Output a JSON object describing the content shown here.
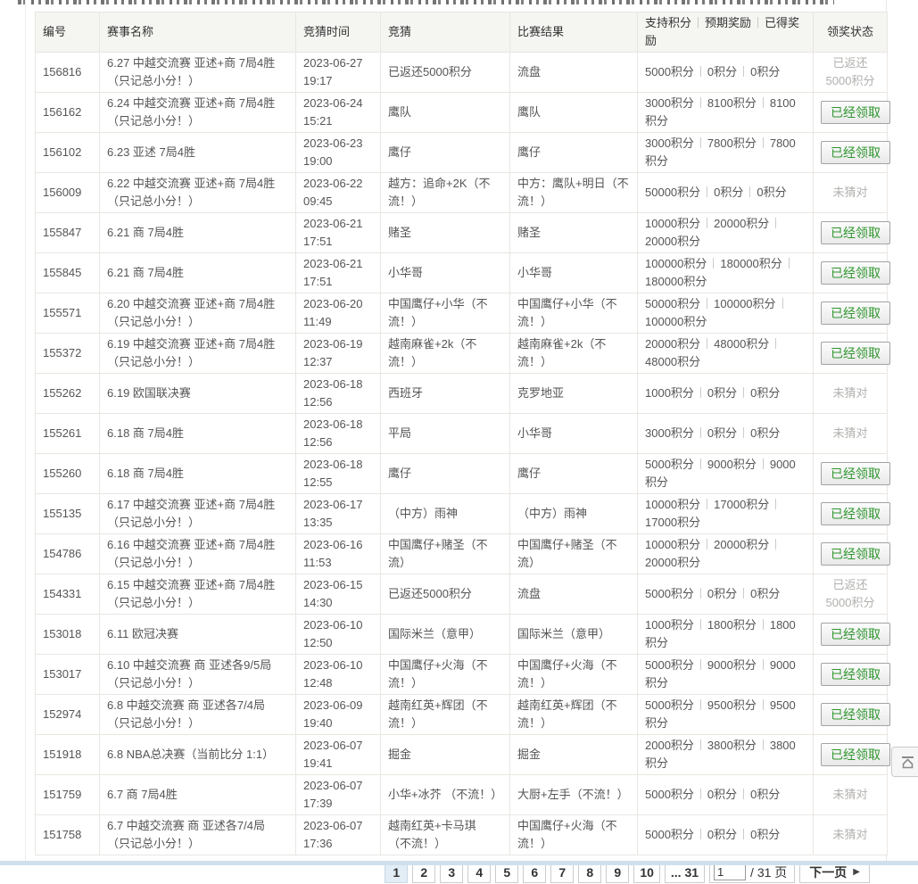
{
  "colors": {
    "accent_green": "#2f962f",
    "status_gray": "#b2b0ad",
    "bottom_bar": "#cfe0ec"
  },
  "table": {
    "headers": {
      "id": "编号",
      "event": "赛事名称",
      "time": "竞猜时间",
      "bet": "竞猜",
      "result": "比赛结果",
      "points_support": "支持积分",
      "points_expected": "预期奖励",
      "points_earned": "已得奖励",
      "status": "领奖状态"
    },
    "rows": [
      {
        "id": "156816",
        "event": "6.27 中越交流赛 亚述+商 7局4胜（只记总小分！）",
        "time": "2023-06-27 19:17",
        "bet": "已返还5000积分",
        "result": "流盘",
        "points": {
          "support": "5000积分",
          "expected": "0积分",
          "earned": "0积分"
        },
        "status": {
          "type": "text",
          "label": "已返还5000积分"
        }
      },
      {
        "id": "156162",
        "event": "6.24 中越交流赛 亚述+商 7局4胜（只记总小分！）",
        "time": "2023-06-24 15:21",
        "bet": "鹰队",
        "result": "鹰队",
        "points": {
          "support": "3000积分",
          "expected": "8100积分",
          "earned": "8100积分"
        },
        "status": {
          "type": "button",
          "label": "已经领取"
        }
      },
      {
        "id": "156102",
        "event": "6.23 亚述 7局4胜",
        "time": "2023-06-23 19:00",
        "bet": "鹰仔",
        "result": "鹰仔",
        "points": {
          "support": "3000积分",
          "expected": "7800积分",
          "earned": "7800积分"
        },
        "status": {
          "type": "button",
          "label": "已经领取"
        }
      },
      {
        "id": "156009",
        "event": "6.22 中越交流赛 亚述+商 7局4胜（只记总小分！）",
        "time": "2023-06-22 09:45",
        "bet": "越方：追命+2K（不流！）",
        "result": "中方：鹰队+明日（不流！）",
        "points": {
          "support": "50000积分",
          "expected": "0积分",
          "earned": "0积分"
        },
        "status": {
          "type": "text",
          "label": "未猜对"
        }
      },
      {
        "id": "155847",
        "event": "6.21 商 7局4胜",
        "time": "2023-06-21 17:51",
        "bet": "赌圣",
        "result": "赌圣",
        "points": {
          "support": "10000积分",
          "expected": "20000积分",
          "earned": "20000积分"
        },
        "status": {
          "type": "button",
          "label": "已经领取"
        }
      },
      {
        "id": "155845",
        "event": "6.21 商 7局4胜",
        "time": "2023-06-21 17:51",
        "bet": "小华哥",
        "result": "小华哥",
        "points": {
          "support": "100000积分",
          "expected": "180000积分",
          "earned": "180000积分"
        },
        "status": {
          "type": "button",
          "label": "已经领取"
        }
      },
      {
        "id": "155571",
        "event": "6.20 中越交流赛 亚述+商 7局4胜（只记总小分！）",
        "time": "2023-06-20 11:49",
        "bet": "中国鹰仔+小华（不流！）",
        "result": "中国鹰仔+小华（不流！）",
        "points": {
          "support": "50000积分",
          "expected": "100000积分",
          "earned": "100000积分"
        },
        "status": {
          "type": "button",
          "label": "已经领取"
        }
      },
      {
        "id": "155372",
        "event": "6.19 中越交流赛 亚述+商 7局4胜（只记总小分！）",
        "time": "2023-06-19 12:37",
        "bet": "越南麻雀+2k（不流！）",
        "result": "越南麻雀+2k（不流！）",
        "points": {
          "support": "20000积分",
          "expected": "48000积分",
          "earned": "48000积分"
        },
        "status": {
          "type": "button",
          "label": "已经领取"
        }
      },
      {
        "id": "155262",
        "event": "6.19 欧国联决赛",
        "time": "2023-06-18 12:56",
        "bet": "西班牙",
        "result": "克罗地亚",
        "points": {
          "support": "1000积分",
          "expected": "0积分",
          "earned": "0积分"
        },
        "status": {
          "type": "text",
          "label": "未猜对"
        }
      },
      {
        "id": "155261",
        "event": "6.18 商 7局4胜",
        "time": "2023-06-18 12:56",
        "bet": "平局",
        "result": "小华哥",
        "points": {
          "support": "3000积分",
          "expected": "0积分",
          "earned": "0积分"
        },
        "status": {
          "type": "text",
          "label": "未猜对"
        }
      },
      {
        "id": "155260",
        "event": "6.18 商 7局4胜",
        "time": "2023-06-18 12:55",
        "bet": "鹰仔",
        "result": "鹰仔",
        "points": {
          "support": "5000积分",
          "expected": "9000积分",
          "earned": "9000积分"
        },
        "status": {
          "type": "button",
          "label": "已经领取"
        }
      },
      {
        "id": "155135",
        "event": "6.17 中越交流赛 亚述+商 7局4胜（只记总小分！）",
        "time": "2023-06-17 13:35",
        "bet": "（中方）雨神",
        "result": "（中方）雨神",
        "points": {
          "support": "10000积分",
          "expected": "17000积分",
          "earned": "17000积分"
        },
        "status": {
          "type": "button",
          "label": "已经领取"
        }
      },
      {
        "id": "154786",
        "event": "6.16 中越交流赛 亚述+商 7局4胜（只记总小分！）",
        "time": "2023-06-16 11:53",
        "bet": "中国鹰仔+赌圣（不流）",
        "result": "中国鹰仔+赌圣（不流）",
        "points": {
          "support": "10000积分",
          "expected": "20000积分",
          "earned": "20000积分"
        },
        "status": {
          "type": "button",
          "label": "已经领取"
        }
      },
      {
        "id": "154331",
        "event": "6.15 中越交流赛 亚述+商 7局4胜（只记总小分！）",
        "time": "2023-06-15 14:30",
        "bet": "已返还5000积分",
        "result": "流盘",
        "points": {
          "support": "5000积分",
          "expected": "0积分",
          "earned": "0积分"
        },
        "status": {
          "type": "text",
          "label": "已返还5000积分"
        }
      },
      {
        "id": "153018",
        "event": "6.11 欧冠决赛",
        "time": "2023-06-10 12:50",
        "bet": "国际米兰（意甲）",
        "result": "国际米兰（意甲）",
        "points": {
          "support": "1000积分",
          "expected": "1800积分",
          "earned": "1800积分"
        },
        "status": {
          "type": "button",
          "label": "已经领取"
        }
      },
      {
        "id": "153017",
        "event": "6.10 中越交流赛 商 亚述各9/5局（只记总小分！）",
        "time": "2023-06-10 12:48",
        "bet": "中国鹰仔+火海（不流！）",
        "result": "中国鹰仔+火海（不流！）",
        "points": {
          "support": "5000积分",
          "expected": "9000积分",
          "earned": "9000积分"
        },
        "status": {
          "type": "button",
          "label": "已经领取"
        }
      },
      {
        "id": "152974",
        "event": "6.8 中越交流赛 商 亚述各7/4局 （只记总小分！）",
        "time": "2023-06-09 19:40",
        "bet": "越南红英+辉团（不流！）",
        "result": "越南红英+辉团（不流！）",
        "points": {
          "support": "5000积分",
          "expected": "9500积分",
          "earned": "9500积分"
        },
        "status": {
          "type": "button",
          "label": "已经领取"
        }
      },
      {
        "id": "151918",
        "event": "6.8 NBA总决赛（当前比分 1:1）",
        "time": "2023-06-07 19:41",
        "bet": "掘金",
        "result": "掘金",
        "points": {
          "support": "2000积分",
          "expected": "3800积分",
          "earned": "3800积分"
        },
        "status": {
          "type": "button",
          "label": "已经领取"
        }
      },
      {
        "id": "151759",
        "event": "6.7 商 7局4胜",
        "time": "2023-06-07 17:39",
        "bet": "小华+冰芥 （不流！）",
        "result": "大厨+左手（不流！）",
        "points": {
          "support": "5000积分",
          "expected": "0积分",
          "earned": "0积分"
        },
        "status": {
          "type": "text",
          "label": "未猜对"
        }
      },
      {
        "id": "151758",
        "event": "6.7 中越交流赛 商 亚述各7/4局 （只记总小分！）",
        "time": "2023-06-07 17:36",
        "bet": "越南红英+卡马琪 （不流！）",
        "result": "中国鹰仔+火海（不流！）",
        "points": {
          "support": "5000积分",
          "expected": "0积分",
          "earned": "0积分"
        },
        "status": {
          "type": "text",
          "label": "未猜对"
        }
      }
    ]
  },
  "pagination": {
    "pages": [
      {
        "label": "1",
        "active": true
      },
      {
        "label": "2"
      },
      {
        "label": "3"
      },
      {
        "label": "4"
      },
      {
        "label": "5"
      },
      {
        "label": "6"
      },
      {
        "label": "7"
      },
      {
        "label": "8"
      },
      {
        "label": "9"
      },
      {
        "label": "10"
      },
      {
        "label": "... 31"
      }
    ],
    "jump_value": "1",
    "total_label": "/ 31 页",
    "next_label": "下一页",
    "next_arrow": "▶"
  }
}
